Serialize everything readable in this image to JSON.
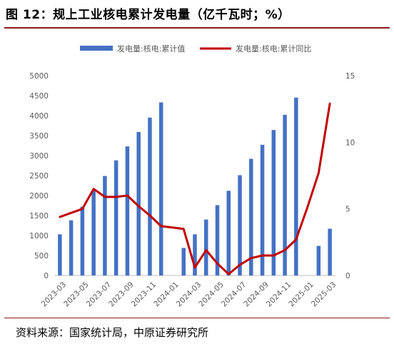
{
  "title": "图 12：规上工业核电累计发电量（亿千瓦时；%）",
  "source": "资料来源：国家统计局，中原证券研究所",
  "colors": {
    "bar": "#4472c4",
    "line": "#c00000",
    "title_rule": "#8b1a1a"
  },
  "chart_data": {
    "type": "bar+line",
    "categories": [
      "2023-03",
      "2023-04",
      "2023-05",
      "2023-06",
      "2023-07",
      "2023-08",
      "2023-09",
      "2023-10",
      "2023-11",
      "2023-12",
      "2024-01",
      "2024-02",
      "2024-03",
      "2024-04",
      "2024-05",
      "2024-06",
      "2024-07",
      "2024-08",
      "2024-09",
      "2024-10",
      "2024-11",
      "2024-12",
      "2025-01",
      "2025-02",
      "2025-03"
    ],
    "x_tick_labels": [
      "2023-03",
      "2023-05",
      "2023-07",
      "2023-09",
      "2023-11",
      "2024-01",
      "2024-03",
      "2024-05",
      "2024-07",
      "2024-09",
      "2024-11",
      "2025-01",
      "2025-03"
    ],
    "series": [
      {
        "name": "发电量:核电:累计值",
        "type": "bar",
        "axis": "left",
        "values": [
          1030,
          1380,
          1720,
          2140,
          2490,
          2880,
          3230,
          3590,
          3950,
          4330,
          null,
          690,
          1030,
          1400,
          1760,
          2120,
          2510,
          2920,
          3270,
          3640,
          4020,
          4450,
          null,
          740,
          1170
        ]
      },
      {
        "name": "发电量:核电:累计同比",
        "type": "line",
        "axis": "right",
        "values": [
          4.4,
          4.7,
          5.0,
          6.5,
          5.9,
          5.9,
          6.0,
          5.2,
          4.5,
          3.7,
          3.6,
          3.5,
          0.6,
          1.9,
          0.9,
          0.1,
          0.8,
          1.3,
          1.5,
          1.5,
          1.9,
          2.7,
          5.1,
          7.7,
          12.9
        ]
      }
    ],
    "y_left": {
      "min": 0,
      "max": 5000,
      "step": 500
    },
    "y_right": {
      "min": 0,
      "max": 15,
      "step": 5
    },
    "legend_position": "top"
  }
}
